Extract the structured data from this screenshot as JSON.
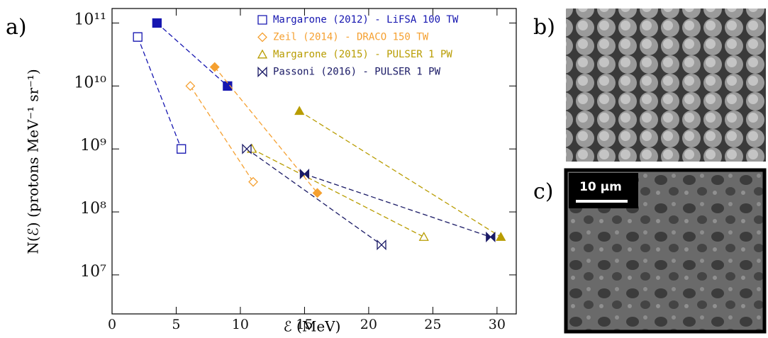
{
  "chart_data": {
    "type": "scatter",
    "x_label": "ℰ (MeV)",
    "y_label": "N(ℰ) (protons MeV⁻¹ sr⁻¹)",
    "log_y": true,
    "xlim": [
      0,
      31.5
    ],
    "ylim": [
      2400000,
      170000000000
    ],
    "xticks": [
      0,
      5,
      10,
      15,
      20,
      25,
      30
    ],
    "yticks": [
      {
        "value": 10000000,
        "label": "10⁷"
      },
      {
        "value": 100000000,
        "label": "10⁸"
      },
      {
        "value": 1000000000,
        "label": "10⁹"
      },
      {
        "value": 10000000000,
        "label": "10¹⁰"
      },
      {
        "value": 100000000000,
        "label": "10¹¹"
      }
    ],
    "series": [
      {
        "name": "Margarone (2012) - LiFSA 100 TW",
        "color": "#1616b0",
        "marker": "square",
        "x": [
          2,
          5.4,
          null,
          3.5,
          9
        ],
        "values": [
          60000000000,
          1000000000,
          null,
          100000000000,
          10000000000
        ],
        "filled": [
          false,
          false,
          null,
          true,
          true
        ]
      },
      {
        "name": "Zeil (2014) - DRACO 150 TW",
        "color": "#f5a030",
        "marker": "diamond",
        "x": [
          6.1,
          11,
          null,
          8,
          16
        ],
        "values": [
          10000000000,
          300000000,
          null,
          20000000000,
          200000000
        ],
        "filled": [
          false,
          false,
          null,
          true,
          true
        ]
      },
      {
        "name": "Margarone (2015) - PULSER 1 PW",
        "color": "#b89c00",
        "marker": "triangle",
        "x": [
          10.9,
          24.3,
          null,
          14.6,
          30.3
        ],
        "values": [
          1000000000,
          40000000,
          null,
          4000000000,
          40000000
        ],
        "filled": [
          false,
          false,
          null,
          true,
          true
        ]
      },
      {
        "name": "Passoni (2016) - PULSER 1 PW",
        "color": "#1a1a66",
        "marker": "bowtie",
        "x": [
          10.5,
          21,
          null,
          15,
          29.5
        ],
        "values": [
          1000000000,
          30000000,
          null,
          400000000,
          40000000
        ],
        "filled": [
          false,
          false,
          null,
          true,
          true
        ]
      }
    ]
  },
  "panels": {
    "a": "a)",
    "b": "b)",
    "c": "c)",
    "scale_bar": "10 μm"
  }
}
